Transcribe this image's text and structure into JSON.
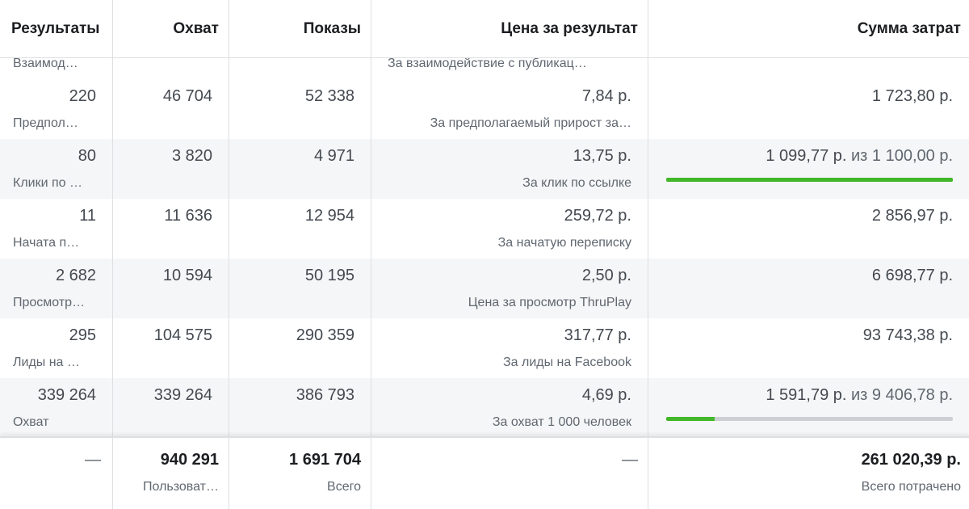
{
  "header": {
    "col_results": "Результаты",
    "col_reach": "Охват",
    "col_impressions": "Показы",
    "col_cost": "Цена за результат",
    "col_spend": "Сумма затрат"
  },
  "partial_row": {
    "results_sub": "Взаимод…",
    "cost_sub": "За взаимодействие с публикац…"
  },
  "rows": [
    {
      "results": "220",
      "results_sub": "Предпол…",
      "reach": "46 704",
      "impressions": "52 338",
      "cost": "7,84 р.",
      "cost_sub": "За предполагаемый прирост за…",
      "spend": "1 723,80 р."
    },
    {
      "results": "80",
      "results_sub": "Клики по …",
      "reach": "3 820",
      "impressions": "4 971",
      "cost": "13,75 р.",
      "cost_sub": "За клик по ссылке",
      "spend": "1 099,77 р.",
      "spend_of": " из 1 100,00 р.",
      "budget_progress": 0.9998
    },
    {
      "results": "11",
      "results_sub": "Начата п…",
      "reach": "11 636",
      "impressions": "12 954",
      "cost": "259,72 р.",
      "cost_sub": "За начатую переписку",
      "spend": "2 856,97 р."
    },
    {
      "results": "2 682",
      "results_sub": "Просмотр…",
      "reach": "10 594",
      "impressions": "50 195",
      "cost": "2,50 р.",
      "cost_sub": "Цена за просмотр ThruPlay",
      "spend": "6 698,77 р."
    },
    {
      "results": "295",
      "results_sub": "Лиды на …",
      "reach": "104 575",
      "impressions": "290 359",
      "cost": "317,77 р.",
      "cost_sub": "За лиды на Facebook",
      "spend": "93 743,38 р."
    },
    {
      "results": "339 264",
      "results_sub": "Охват",
      "reach": "339 264",
      "impressions": "386 793",
      "cost": "4,69 р.",
      "cost_sub": "За охват 1 000 человек",
      "spend": "1 591,79 р.",
      "spend_of": " из 9 406,78 р.",
      "budget_progress": 0.169
    }
  ],
  "totals": {
    "results": "—",
    "reach": "940 291",
    "reach_sub": "Пользоват…",
    "impressions": "1 691 704",
    "impressions_sub": "Всего",
    "cost": "—",
    "spend": "261 020,39 р.",
    "spend_sub": "Всего потрачено"
  },
  "colors": {
    "progress_fill": "#42b72a",
    "progress_track": "#ccd0d5",
    "row_alt": "#f5f6f7"
  }
}
